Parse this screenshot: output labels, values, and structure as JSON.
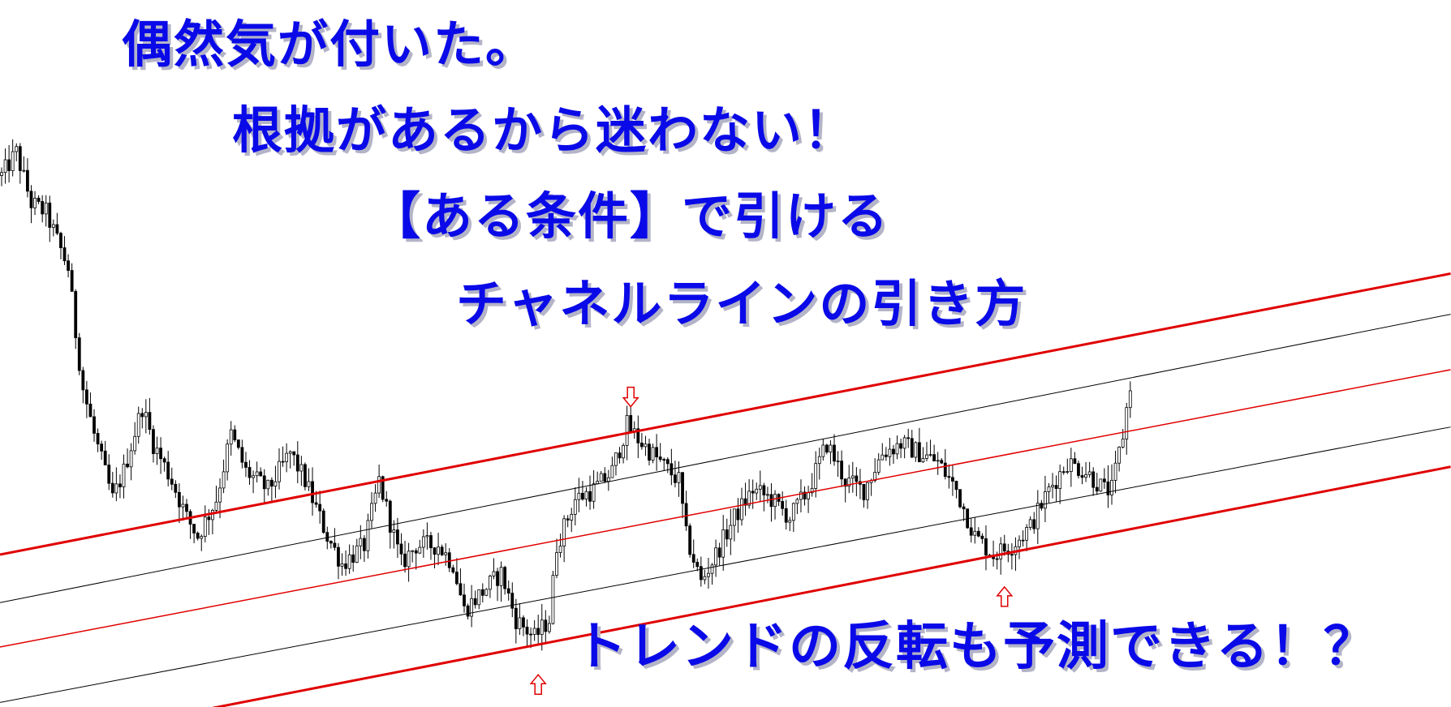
{
  "headlines": {
    "line1": "偶然気が付いた。",
    "line2": "根拠があるから迷わない！",
    "line3": "【ある条件】で引ける",
    "line4": "チャネルラインの引き方",
    "line5": "トレンドの反転も予測できる！？"
  },
  "colors": {
    "text": "#0a0ae8",
    "channel_main": "#e00000",
    "channel_sub": "#000000",
    "candle": "#000000",
    "arrow": "#e00000"
  },
  "chart_data": {
    "type": "candlestick",
    "title": "",
    "xlabel": "",
    "ylabel": "",
    "axes_visible": false,
    "grid": false,
    "xlim": [
      0,
      392
    ],
    "ylim": [
      35,
      800
    ],
    "close_path": [
      [
        0,
        610
      ],
      [
        4,
        635
      ],
      [
        8,
        580
      ],
      [
        12,
        570
      ],
      [
        18,
        510
      ],
      [
        20,
        440
      ],
      [
        22,
        380
      ],
      [
        25,
        330
      ],
      [
        30,
        260
      ],
      [
        33,
        290
      ],
      [
        38,
        360
      ],
      [
        41,
        320
      ],
      [
        46,
        280
      ],
      [
        50,
        240
      ],
      [
        53,
        220
      ],
      [
        58,
        260
      ],
      [
        62,
        330
      ],
      [
        66,
        290
      ],
      [
        72,
        270
      ],
      [
        78,
        310
      ],
      [
        82,
        280
      ],
      [
        88,
        220
      ],
      [
        92,
        190
      ],
      [
        98,
        210
      ],
      [
        102,
        280
      ],
      [
        108,
        190
      ],
      [
        112,
        210
      ],
      [
        118,
        210
      ],
      [
        122,
        190
      ],
      [
        125,
        140
      ],
      [
        130,
        160
      ],
      [
        135,
        180
      ],
      [
        139,
        130
      ],
      [
        144,
        110
      ],
      [
        148,
        130
      ],
      [
        150,
        210
      ],
      [
        155,
        260
      ],
      [
        160,
        270
      ],
      [
        165,
        290
      ],
      [
        169,
        340
      ],
      [
        172,
        325
      ],
      [
        178,
        300
      ],
      [
        183,
        280
      ],
      [
        185,
        220
      ],
      [
        189,
        170
      ],
      [
        193,
        200
      ],
      [
        198,
        240
      ],
      [
        203,
        270
      ],
      [
        208,
        260
      ],
      [
        213,
        240
      ],
      [
        218,
        270
      ],
      [
        223,
        320
      ],
      [
        228,
        280
      ],
      [
        233,
        270
      ],
      [
        238,
        310
      ],
      [
        243,
        320
      ],
      [
        248,
        310
      ],
      [
        253,
        300
      ],
      [
        258,
        270
      ],
      [
        263,
        220
      ],
      [
        268,
        200
      ],
      [
        273,
        210
      ],
      [
        278,
        230
      ],
      [
        283,
        270
      ],
      [
        288,
        300
      ],
      [
        293,
        290
      ],
      [
        298,
        270
      ],
      [
        300,
        270
      ],
      [
        303,
        330
      ],
      [
        305,
        385
      ]
    ],
    "channel_lines": [
      {
        "style": "main",
        "from": [
          0,
          200
        ],
        "to": [
          392,
          504
        ]
      },
      {
        "style": "sub",
        "from": [
          0,
          148
        ],
        "to": [
          392,
          460
        ]
      },
      {
        "style": "main-thin",
        "from": [
          0,
          100
        ],
        "to": [
          392,
          400
        ]
      },
      {
        "style": "sub",
        "from": [
          0,
          40
        ],
        "to": [
          392,
          338
        ]
      },
      {
        "style": "main",
        "from": [
          57.5,
          34
        ],
        "to": [
          392,
          295
        ]
      }
    ],
    "markers": [
      {
        "type": "arrow-down",
        "bar": 170,
        "price": 360
      },
      {
        "type": "arrow-up",
        "bar": 145,
        "price": 70
      },
      {
        "type": "arrow-up",
        "bar": 271,
        "price": 165
      }
    ]
  }
}
